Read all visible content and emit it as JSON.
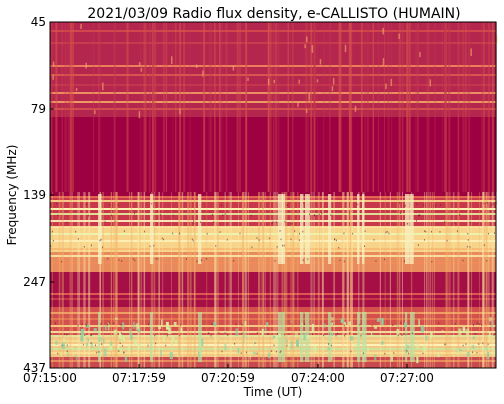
{
  "chart_data": {
    "type": "heatmap",
    "title": "2021/03/09  Radio flux density, e-CALLISTO (HUMAIN)",
    "xlabel": "Time (UT)",
    "ylabel": "Frequency (MHz)",
    "x_ticks": [
      "07:15:00",
      "07:17:59",
      "07:20:59",
      "07:24:00",
      "07:27:00"
    ],
    "y_ticks": [
      "45",
      "79",
      "139",
      "247",
      "437"
    ],
    "colormap": "Spectral_r",
    "colors": {
      "low": "#9e0142",
      "mid_low": "#d53e4f",
      "mid": "#f46d43",
      "mid_high": "#fee08b",
      "high": "#e6f598",
      "peak": "#66c2a5"
    }
  }
}
